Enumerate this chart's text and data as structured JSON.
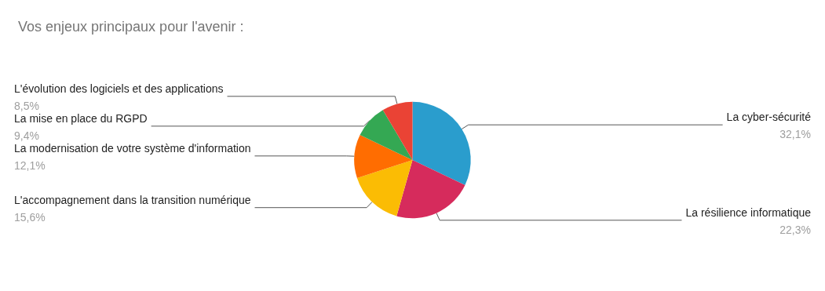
{
  "chart_data": {
    "type": "pie",
    "title": "Vos enjeux principaux pour l'avenir :",
    "categories": [
      "La cyber-sécurité",
      "La résilience informatique",
      "L'accompagnement dans la transition numérique",
      "La modernisation de votre système d'information",
      "La mise en place du RGPD",
      "L'évolution des logiciels et des applications"
    ],
    "values": [
      32.1,
      22.3,
      15.6,
      12.1,
      9.4,
      8.5
    ],
    "colors": [
      "#2a9dcd",
      "#d62b5c",
      "#fbbc04",
      "#ff6d01",
      "#34a853",
      "#ea4335"
    ],
    "value_labels": [
      "32,1%",
      "22,3%",
      "15,6%",
      "12,1%",
      "9,4%",
      "8,5%"
    ],
    "legend": false
  }
}
